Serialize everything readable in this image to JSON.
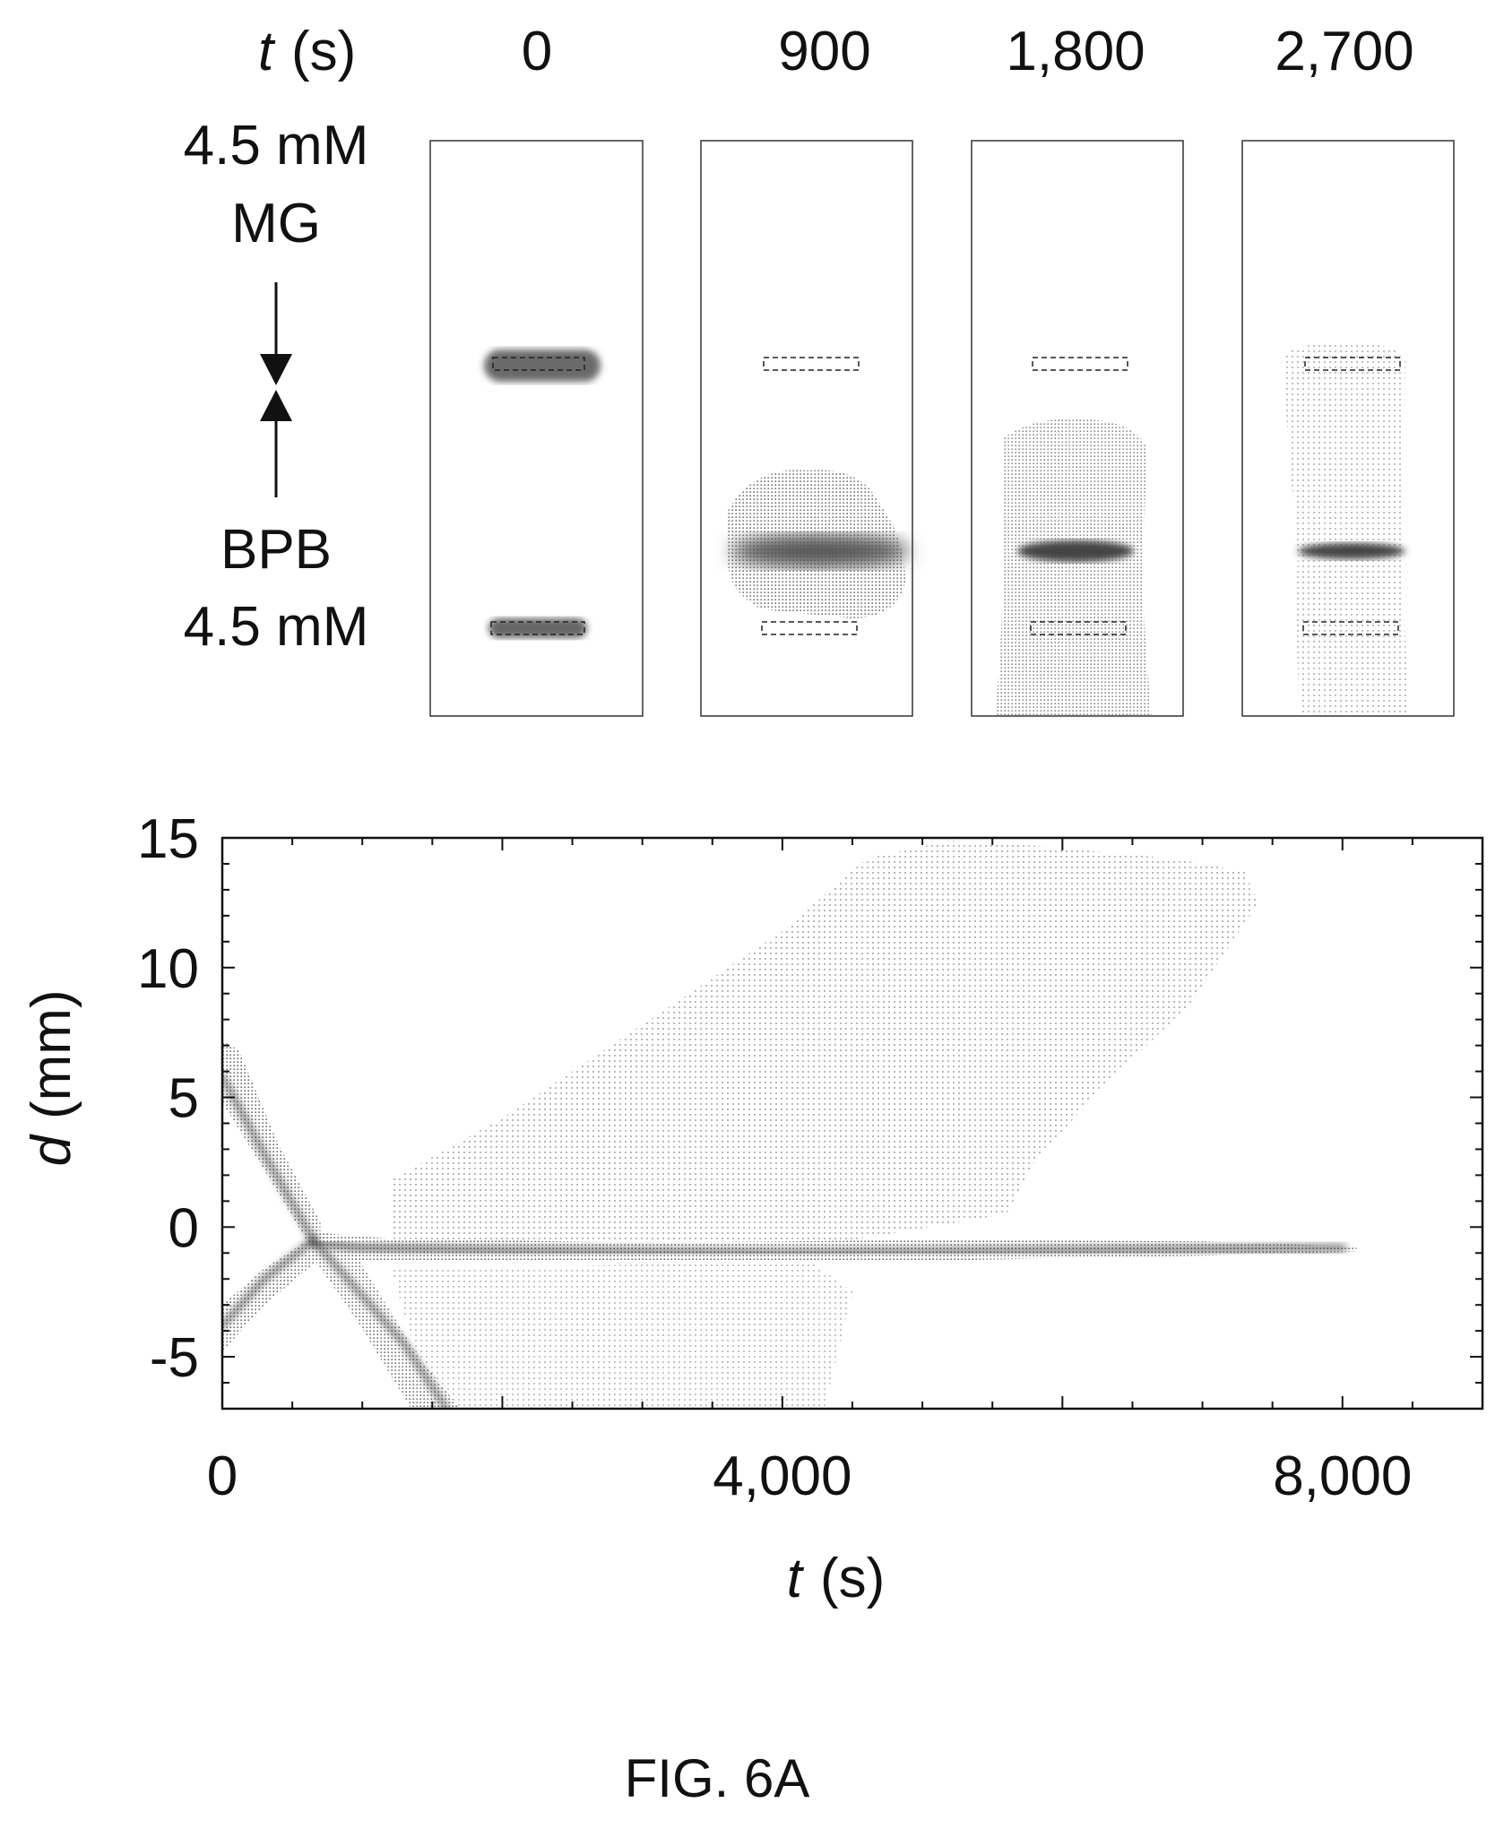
{
  "snapshots": {
    "time_header": {
      "var": "t",
      "unit": "(s)"
    },
    "times": [
      "0",
      "900",
      "1,800",
      "2,700"
    ],
    "legend": {
      "top_line1": "4.5 mM",
      "top_line2": "MG",
      "bottom_line1": "BPB",
      "bottom_line2": "4.5 mM"
    }
  },
  "chart_data": {
    "type": "scatter",
    "xlabel": {
      "var": "t",
      "unit": "(s)"
    },
    "ylabel": {
      "var": "d",
      "unit": "(mm)"
    },
    "xlim": [
      0,
      9000
    ],
    "ylim": [
      -7,
      15
    ],
    "x_ticks": [
      "0",
      "4,000",
      "8,000"
    ],
    "x_tick_values": [
      0,
      4000,
      8000
    ],
    "y_ticks": [
      "15",
      "10",
      "5",
      "0",
      "-5"
    ],
    "y_tick_values": [
      15,
      10,
      5,
      0,
      -5
    ],
    "x_minor_step": 500,
    "y_minor_step": 1,
    "series": [
      {
        "x": [
          0,
          300,
          650
        ],
        "y": [
          5.8,
          2.8,
          -0.5
        ]
      },
      {
        "x": [
          0,
          300,
          650
        ],
        "y": [
          -3.8,
          -2.0,
          -0.5
        ]
      },
      {
        "x": [
          650,
          1000,
          2000,
          4000,
          6000,
          8000
        ],
        "y": [
          -0.6,
          -0.8,
          -0.9,
          -1.0,
          -0.9,
          -0.8
        ]
      },
      {
        "x": [
          650,
          1300,
          1600
        ],
        "y": [
          -0.5,
          -4.5,
          -7
        ]
      },
      {
        "x": [
          1200,
          2000,
          3000,
          4000,
          5000,
          5500
        ],
        "y": [
          1.5,
          4,
          7.5,
          11.5,
          14.5,
          14.8
        ]
      }
    ]
  },
  "caption": "FIG. 6A"
}
